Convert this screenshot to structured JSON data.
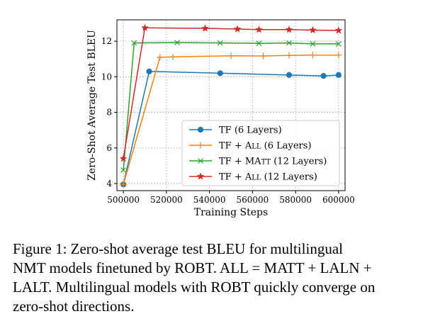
{
  "chart_data": {
    "type": "line",
    "title": "",
    "xlabel": "Training Steps",
    "ylabel": "Zero-Shot Average Test BLEU",
    "xlim": [
      497000,
      603000
    ],
    "ylim": [
      3.6,
      13.2
    ],
    "xticks": [
      500000,
      520000,
      540000,
      560000,
      580000,
      600000
    ],
    "xtick_labels": [
      "500000",
      "520000",
      "540000",
      "560000",
      "580000",
      "600000"
    ],
    "yticks": [
      4,
      6,
      8,
      10,
      12
    ],
    "ytick_labels": [
      "4",
      "6",
      "8",
      "10",
      "12"
    ],
    "grid": true,
    "legend_position": "lower-right",
    "series": [
      {
        "name": "TF (6 Layers)",
        "color": "#1f77b4",
        "marker": "circle",
        "x": [
          500000,
          512000,
          545000,
          577000,
          593000,
          600000
        ],
        "y": [
          3.95,
          10.3,
          10.2,
          10.1,
          10.05,
          10.1
        ]
      },
      {
        "name": "TF + ALL (6 Layers)",
        "color": "#ff7f0e",
        "marker": "plus",
        "x": [
          500000,
          517000,
          523000,
          550000,
          565000,
          577000,
          588000,
          600000
        ],
        "y": [
          3.95,
          11.1,
          11.12,
          11.18,
          11.17,
          11.2,
          11.22,
          11.22
        ]
      },
      {
        "name": "TF + MATT (12 Layers)",
        "color": "#2ca02c",
        "marker": "x",
        "x": [
          500000,
          505000,
          525000,
          545000,
          563000,
          577000,
          588000,
          600000
        ],
        "y": [
          4.75,
          11.9,
          11.92,
          11.9,
          11.88,
          11.9,
          11.85,
          11.85
        ]
      },
      {
        "name": "TF + ALL (12 Layers)",
        "color": "#d62728",
        "marker": "star",
        "x": [
          500000,
          510000,
          538000,
          553000,
          563000,
          577000,
          588000,
          600000
        ],
        "y": [
          5.4,
          12.75,
          12.72,
          12.68,
          12.65,
          12.65,
          12.62,
          12.6
        ]
      }
    ]
  },
  "legend": [
    {
      "base": "TF (6 Layers)",
      "sc": [],
      "tail": ""
    },
    {
      "base": "TF + ",
      "sc": [
        {
          "big": "A",
          "small": "LL"
        }
      ],
      "tail": " (6 Layers)"
    },
    {
      "base": "TF + ",
      "sc": [
        {
          "big": "MA",
          "small": "TT"
        }
      ],
      "tail": " (12 Layers)"
    },
    {
      "base": "TF + ",
      "sc": [
        {
          "big": "A",
          "small": "LL"
        }
      ],
      "tail": " (12 Layers)"
    }
  ],
  "caption": {
    "lines": [
      "Figure 1:  Zero-shot average test BLEU for multilingual",
      "NMT models finetuned by ROBT. ALL = MATT + LALN +",
      "LALT. Multilingual models with ROBT quickly converge on",
      "zero-shot directions."
    ]
  }
}
